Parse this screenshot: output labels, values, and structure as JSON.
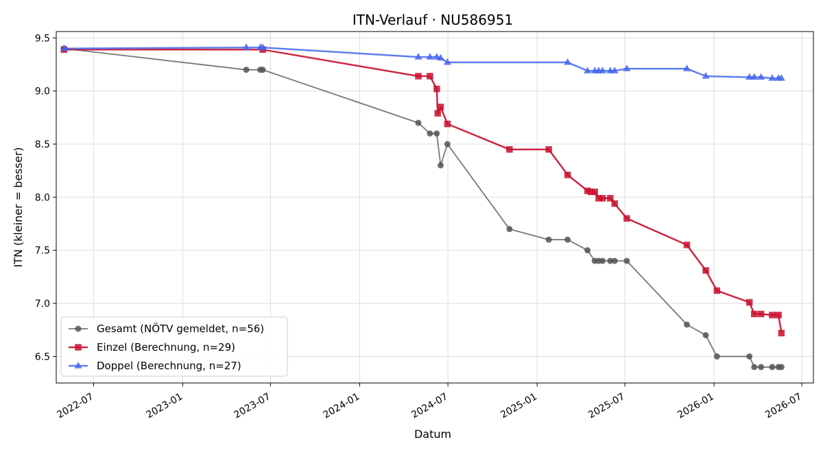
{
  "chart_data": {
    "type": "line",
    "title": "ITN-Verlauf · NU586951",
    "xlabel": "Datum",
    "ylabel": "ITN  (kleiner = besser)",
    "xlim": [
      "2022-04-15",
      "2026-07-25"
    ],
    "ylim": [
      6.25,
      9.56
    ],
    "grid": true,
    "legend_position": "lower-left",
    "x_ticks": [
      "2022-07",
      "2023-01",
      "2023-07",
      "2024-01",
      "2024-07",
      "2025-01",
      "2025-07",
      "2026-01",
      "2026-07"
    ],
    "y_ticks": [
      6.5,
      7.0,
      7.5,
      8.0,
      8.5,
      9.0,
      9.5
    ],
    "series": [
      {
        "name": "Gesamt (NÖTV gemeldet, n=56)",
        "color": "#555555",
        "marker": "circle",
        "points": [
          [
            "2022-05-01",
            9.4
          ],
          [
            "2023-05-12",
            9.2
          ],
          [
            "2023-06-10",
            9.2
          ],
          [
            "2023-06-15",
            9.2
          ],
          [
            "2024-05-01",
            8.7
          ],
          [
            "2024-05-25",
            8.6
          ],
          [
            "2024-06-08",
            8.6
          ],
          [
            "2024-06-16",
            8.3
          ],
          [
            "2024-06-30",
            8.5
          ],
          [
            "2024-11-05",
            7.7
          ],
          [
            "2025-01-25",
            7.6
          ],
          [
            "2025-03-05",
            7.6
          ],
          [
            "2025-04-15",
            7.5
          ],
          [
            "2025-04-30",
            7.4
          ],
          [
            "2025-05-08",
            7.4
          ],
          [
            "2025-05-16",
            7.4
          ],
          [
            "2025-06-01",
            7.4
          ],
          [
            "2025-06-10",
            7.4
          ],
          [
            "2025-07-05",
            7.4
          ],
          [
            "2025-11-06",
            6.8
          ],
          [
            "2025-12-15",
            6.7
          ],
          [
            "2026-01-07",
            6.5
          ],
          [
            "2026-03-15",
            6.5
          ],
          [
            "2026-03-25",
            6.4
          ],
          [
            "2026-04-08",
            6.4
          ],
          [
            "2026-05-01",
            6.4
          ],
          [
            "2026-05-14",
            6.4
          ],
          [
            "2026-05-20",
            6.4
          ]
        ]
      },
      {
        "name": "Einzel (Berechnung, n=29)",
        "color": "#c8102e",
        "marker": "square",
        "points": [
          [
            "2022-05-01",
            9.39
          ],
          [
            "2023-06-15",
            9.39
          ],
          [
            "2024-05-01",
            9.14
          ],
          [
            "2024-05-25",
            9.14
          ],
          [
            "2024-06-08",
            9.02
          ],
          [
            "2024-06-10",
            8.79
          ],
          [
            "2024-06-16",
            8.85
          ],
          [
            "2024-06-30",
            8.69
          ],
          [
            "2024-11-05",
            8.45
          ],
          [
            "2025-01-25",
            8.45
          ],
          [
            "2025-03-05",
            8.21
          ],
          [
            "2025-04-15",
            8.06
          ],
          [
            "2025-04-22",
            8.05
          ],
          [
            "2025-04-30",
            8.05
          ],
          [
            "2025-05-08",
            7.99
          ],
          [
            "2025-05-16",
            7.99
          ],
          [
            "2025-06-01",
            7.99
          ],
          [
            "2025-06-10",
            7.94
          ],
          [
            "2025-07-05",
            7.8
          ],
          [
            "2025-11-06",
            7.55
          ],
          [
            "2025-12-15",
            7.31
          ],
          [
            "2026-01-07",
            7.12
          ],
          [
            "2026-03-15",
            7.01
          ],
          [
            "2026-03-25",
            6.9
          ],
          [
            "2026-04-08",
            6.9
          ],
          [
            "2026-05-01",
            6.89
          ],
          [
            "2026-05-14",
            6.89
          ],
          [
            "2026-05-20",
            6.72
          ]
        ]
      },
      {
        "name": "Doppel (Berechnung, n=27)",
        "color": "#4466ee",
        "marker": "triangle",
        "points": [
          [
            "2022-05-01",
            9.4
          ],
          [
            "2023-05-12",
            9.41
          ],
          [
            "2023-06-10",
            9.41
          ],
          [
            "2023-06-15",
            9.41
          ],
          [
            "2024-05-01",
            9.32
          ],
          [
            "2024-05-25",
            9.32
          ],
          [
            "2024-06-08",
            9.32
          ],
          [
            "2024-06-16",
            9.31
          ],
          [
            "2024-06-30",
            9.27
          ],
          [
            "2025-03-05",
            9.27
          ],
          [
            "2025-04-15",
            9.19
          ],
          [
            "2025-04-30",
            9.19
          ],
          [
            "2025-05-08",
            9.19
          ],
          [
            "2025-05-16",
            9.19
          ],
          [
            "2025-06-01",
            9.19
          ],
          [
            "2025-06-10",
            9.19
          ],
          [
            "2025-07-05",
            9.21
          ],
          [
            "2025-11-06",
            9.21
          ],
          [
            "2025-12-15",
            9.14
          ],
          [
            "2026-03-15",
            9.13
          ],
          [
            "2026-03-25",
            9.13
          ],
          [
            "2026-04-08",
            9.13
          ],
          [
            "2026-05-01",
            9.12
          ],
          [
            "2026-05-14",
            9.12
          ],
          [
            "2026-05-20",
            9.12
          ]
        ]
      }
    ]
  }
}
